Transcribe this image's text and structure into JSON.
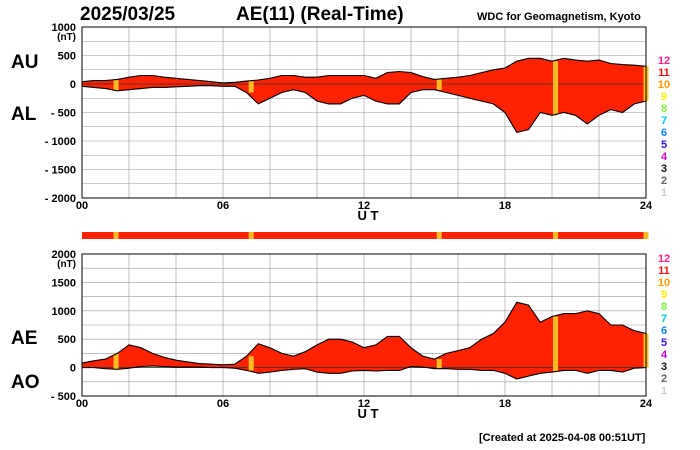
{
  "header": {
    "date": "2025/03/25",
    "title": "AE(11) (Real-Time)",
    "source": "WDC for Geomagnetism, Kyoto"
  },
  "footer": {
    "created": "[Created at 2025-04-08 00:51UT]"
  },
  "colors": {
    "fill": "#ff2200",
    "outline": "#000000",
    "grid": "#999999",
    "gap": "#ffbb22"
  },
  "chart_data": [
    {
      "type": "area",
      "id": "au-al",
      "labels": {
        "upper": "AU",
        "lower": "AL"
      },
      "yunit": "(nT)",
      "ylim": [
        -2000,
        1000
      ],
      "yticks": [
        {
          "value": 1000,
          "label": "1000"
        },
        {
          "value": 500,
          "label": "500"
        },
        {
          "value": 0,
          "label": "0"
        },
        {
          "value": -500,
          "label": "- 500"
        },
        {
          "value": -1000,
          "label": "- 1000"
        },
        {
          "value": -1500,
          "label": "- 1500"
        },
        {
          "value": -2000,
          "label": "- 2000"
        }
      ],
      "xlim": [
        0,
        24
      ],
      "xticks": [
        {
          "value": 0,
          "label": "00"
        },
        {
          "value": 6,
          "label": "06"
        },
        {
          "value": 12,
          "label": "12"
        },
        {
          "value": 18,
          "label": "18"
        },
        {
          "value": 24,
          "label": "24"
        }
      ],
      "xlabel": "U T",
      "grid": true,
      "x": [
        0,
        0.5,
        1,
        1.5,
        2,
        2.5,
        3,
        3.5,
        4,
        4.5,
        5,
        5.5,
        6,
        6.5,
        7,
        7.5,
        8,
        8.5,
        9,
        9.5,
        10,
        10.5,
        11,
        11.5,
        12,
        12.5,
        13,
        13.5,
        14,
        14.5,
        15,
        15.5,
        16,
        16.5,
        17,
        17.5,
        18,
        18.5,
        19,
        19.5,
        20,
        20.5,
        21,
        21.5,
        22,
        22.5,
        23,
        23.5,
        24
      ],
      "series": [
        {
          "name": "AU",
          "values": [
            40,
            60,
            60,
            80,
            120,
            150,
            150,
            120,
            100,
            80,
            60,
            40,
            20,
            30,
            50,
            70,
            100,
            150,
            150,
            120,
            120,
            150,
            150,
            150,
            150,
            100,
            200,
            220,
            200,
            130,
            80,
            100,
            120,
            150,
            200,
            250,
            280,
            400,
            450,
            450,
            400,
            450,
            420,
            400,
            420,
            360,
            340,
            330,
            310
          ]
        },
        {
          "name": "AL",
          "values": [
            -40,
            -60,
            -80,
            -120,
            -100,
            -80,
            -60,
            -60,
            -50,
            -40,
            -30,
            -30,
            -40,
            -40,
            -150,
            -350,
            -250,
            -150,
            -100,
            -150,
            -300,
            -350,
            -350,
            -250,
            -200,
            -300,
            -350,
            -350,
            -150,
            -100,
            -100,
            -150,
            -200,
            -250,
            -300,
            -350,
            -500,
            -850,
            -800,
            -500,
            -550,
            -500,
            -550,
            -700,
            -550,
            -450,
            -500,
            -350,
            -300
          ]
        }
      ],
      "legend": {
        "values": [
          "12",
          "11",
          "10",
          "9",
          "8",
          "7",
          "6",
          "5",
          "4",
          "3",
          "2",
          "1"
        ],
        "colors": [
          "#ff2288",
          "#ee1111",
          "#ff9900",
          "#ffee00",
          "#88ee44",
          "#00ccdd",
          "#1188ff",
          "#3311dd",
          "#cc00cc",
          "#111111",
          "#666666",
          "#cccccc"
        ]
      },
      "gaps": [
        1.45,
        7.2,
        15.2,
        20.15,
        24
      ]
    },
    {
      "type": "area",
      "id": "ae-ao",
      "labels": {
        "upper": "AE",
        "lower": "AO"
      },
      "yunit": "(nT)",
      "ylim": [
        -500,
        2000
      ],
      "yticks": [
        {
          "value": 2000,
          "label": "2000"
        },
        {
          "value": 1500,
          "label": "1500"
        },
        {
          "value": 1000,
          "label": "1000"
        },
        {
          "value": 500,
          "label": "500"
        },
        {
          "value": 0,
          "label": "0"
        },
        {
          "value": -500,
          "label": "- 500"
        }
      ],
      "xlim": [
        0,
        24
      ],
      "xticks": [
        {
          "value": 0,
          "label": "00"
        },
        {
          "value": 6,
          "label": "06"
        },
        {
          "value": 12,
          "label": "12"
        },
        {
          "value": 18,
          "label": "18"
        },
        {
          "value": 24,
          "label": "24"
        }
      ],
      "xlabel": "U T",
      "grid": true,
      "x": [
        0,
        0.5,
        1,
        1.5,
        2,
        2.5,
        3,
        3.5,
        4,
        4.5,
        5,
        5.5,
        6,
        6.5,
        7,
        7.5,
        8,
        8.5,
        9,
        9.5,
        10,
        10.5,
        11,
        11.5,
        12,
        12.5,
        13,
        13.5,
        14,
        14.5,
        15,
        15.5,
        16,
        16.5,
        17,
        17.5,
        18,
        18.5,
        19,
        19.5,
        20,
        20.5,
        21,
        21.5,
        22,
        22.5,
        23,
        23.5,
        24
      ],
      "series": [
        {
          "name": "AE",
          "values": [
            80,
            120,
            150,
            250,
            400,
            350,
            250,
            180,
            130,
            100,
            70,
            60,
            50,
            60,
            200,
            420,
            350,
            250,
            200,
            280,
            400,
            500,
            500,
            450,
            350,
            400,
            550,
            550,
            350,
            200,
            150,
            250,
            300,
            350,
            500,
            600,
            800,
            1150,
            1100,
            800,
            900,
            950,
            950,
            1000,
            950,
            750,
            750,
            650,
            600
          ]
        },
        {
          "name": "AO",
          "values": [
            0,
            0,
            -20,
            -30,
            -10,
            20,
            30,
            20,
            10,
            10,
            10,
            0,
            0,
            -10,
            -50,
            -100,
            -80,
            -50,
            -30,
            -20,
            -80,
            -100,
            -100,
            -60,
            -50,
            -60,
            -50,
            -50,
            20,
            10,
            -20,
            -20,
            -30,
            -30,
            -50,
            -50,
            -100,
            -200,
            -150,
            -100,
            -80,
            -50,
            -50,
            -100,
            -50,
            -50,
            -80,
            -10,
            0
          ]
        }
      ],
      "legend": {
        "values": [
          "12",
          "11",
          "10",
          "9",
          "8",
          "7",
          "6",
          "5",
          "4",
          "3",
          "2",
          "1"
        ],
        "colors": [
          "#ff2288",
          "#ee1111",
          "#ff9900",
          "#ffee00",
          "#88ee44",
          "#00ccdd",
          "#1188ff",
          "#3311dd",
          "#cc00cc",
          "#111111",
          "#666666",
          "#cccccc"
        ]
      },
      "gaps": [
        1.45,
        7.2,
        15.2,
        20.15,
        24
      ]
    }
  ]
}
